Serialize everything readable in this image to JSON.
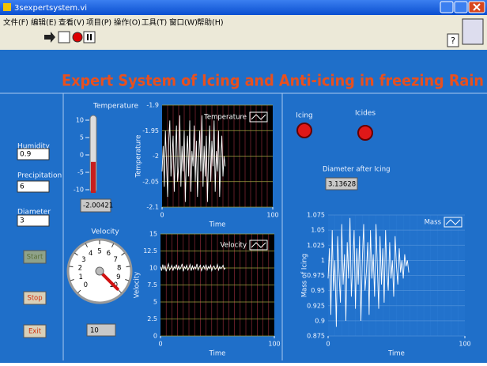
{
  "window": {
    "title": "3sexpertsystem.vi"
  },
  "menu": [
    "文件(F)",
    "编辑(E)",
    "查看(V)",
    "项目(P)",
    "操作(O)",
    "工具(T)",
    "窗口(W)",
    "帮助(H)"
  ],
  "panel": {
    "title": "Expert System of Icing and Anti-icing in freezing Rain",
    "controls": [
      {
        "label": "Humidity",
        "value": 0.9
      },
      {
        "label": "Precipitation",
        "value": 6
      },
      {
        "label": "Diameter",
        "value": 3
      }
    ],
    "buttons": [
      "Start",
      "Stop",
      "Exit"
    ],
    "thermometer": {
      "label": "Temperature",
      "lim": [
        -10,
        10
      ],
      "ticks": [
        10,
        5,
        0,
        -5,
        -10
      ],
      "value": -2.00421
    },
    "gauge": {
      "label": "Velocity",
      "lim": [
        0,
        10
      ],
      "ticks": [
        0,
        1,
        2,
        3,
        4,
        5,
        6,
        7,
        8,
        9,
        10
      ],
      "value": 10
    },
    "temperature_chart": {
      "type": "line",
      "xlabel": "Time",
      "ylabel": "Temperature",
      "xlim": [
        0,
        100
      ],
      "xticks": [
        0,
        100
      ],
      "ylim": [
        -2.1,
        -1.9
      ],
      "yticks": [
        -1.9,
        -1.95,
        -2,
        -2.05,
        -2.1
      ],
      "series": [
        {
          "name": "Temperature",
          "color": "#ffffff",
          "values": [
            -2.03,
            -1.98,
            -2.06,
            -1.95,
            -2.01,
            -2.08,
            -1.97,
            -1.93,
            -2.04,
            -2.0,
            -1.96,
            -2.07,
            -1.99,
            -1.94,
            -2.05,
            -2.02,
            -1.92,
            -2.06,
            -1.98,
            -2.03,
            -1.95,
            -2.09,
            -2.0,
            -1.96,
            -2.04,
            -1.93,
            -2.07,
            -1.99,
            -2.02,
            -1.94,
            -2.05,
            -1.97,
            -2.08,
            -2.01,
            -1.95,
            -2.03,
            -1.92,
            -2.06,
            -1.98,
            -2.04,
            -1.96,
            -2.09,
            -2.0,
            -1.94,
            -2.05,
            -1.97,
            -2.02,
            -1.93,
            -2.07,
            -1.99,
            -2.03,
            -1.95,
            -2.08,
            -2.01,
            -1.96,
            -2.04,
            -2.0,
            -2.02
          ]
        }
      ]
    },
    "velocity_chart": {
      "type": "line",
      "xlabel": "Time",
      "ylabel": "Velocity",
      "xlim": [
        0,
        100
      ],
      "xticks": [
        0,
        100
      ],
      "ylim": [
        0,
        15
      ],
      "yticks": [
        15,
        12.5,
        10,
        7.5,
        5,
        2.5,
        0
      ],
      "series": [
        {
          "name": "Velocity",
          "color": "#ffffff",
          "values": [
            10.2,
            9.6,
            10.5,
            9.8,
            10.3,
            9.5,
            10.1,
            10.6,
            9.7,
            10.0,
            10.4,
            9.6,
            10.2,
            9.9,
            10.5,
            9.7,
            10.3,
            9.8,
            10.1,
            10.6,
            9.5,
            10.2,
            9.9,
            10.4,
            9.7,
            10.0,
            10.5,
            9.6,
            10.3,
            9.8,
            10.2,
            9.9,
            10.6,
            9.7,
            10.1,
            10.4,
            9.6,
            10.0,
            10.3,
            9.8,
            10.5,
            9.7,
            10.2,
            9.9,
            10.4,
            9.6,
            10.1,
            10.3,
            9.8,
            10.0,
            10.5,
            9.7,
            10.2,
            9.9,
            10.1,
            10.4,
            9.8,
            10.0
          ]
        }
      ]
    },
    "indicators": [
      {
        "label": "Icing"
      },
      {
        "label": "Icides"
      }
    ],
    "diameter_after": {
      "label": "Diameter after Icing",
      "value": 3.13628
    },
    "mass_chart": {
      "type": "line",
      "xlabel": "Time",
      "ylabel": "Mass of Icing",
      "xlim": [
        0,
        100
      ],
      "xticks": [
        0,
        100
      ],
      "ylim": [
        0.875,
        1.075
      ],
      "yticks": [
        1.075,
        1.05,
        1.025,
        1,
        0.975,
        0.95,
        0.925,
        0.9,
        0.875
      ],
      "series": [
        {
          "name": "Mass",
          "color": "#ffffff",
          "values": [
            0.97,
            1.02,
            0.91,
            1.05,
            0.95,
            1.0,
            0.89,
            1.04,
            0.98,
            0.93,
            1.06,
            0.96,
            1.01,
            0.9,
            1.03,
            0.97,
            1.07,
            0.94,
            0.99,
            1.05,
            0.92,
            1.02,
            0.96,
            1.04,
            0.9,
            1.0,
            1.06,
            0.95,
            0.98,
            1.03,
            0.91,
            1.05,
            0.97,
            1.01,
            0.94,
            1.06,
            0.99,
            0.92,
            1.04,
            0.96,
            1.02,
            0.93,
            1.05,
            0.98,
            0.95,
            1.03,
            0.97,
            1.0,
            0.94,
            1.04,
            0.99,
            0.96,
            1.02,
            0.98,
            1.0,
            0.97,
            1.01,
            0.99,
            1.0,
            0.98
          ]
        }
      ]
    }
  }
}
